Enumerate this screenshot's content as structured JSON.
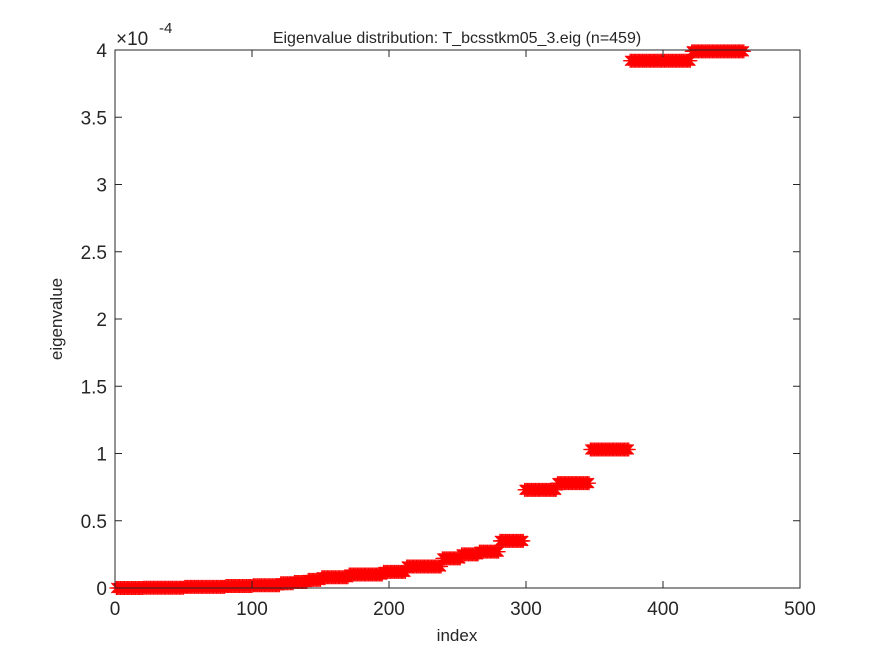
{
  "chart_data": {
    "type": "scatter",
    "title": "Eigenvalue distribution: T_bcsstkm05_3.eig (n=459)",
    "xlabel": "index",
    "ylabel": "eigenvalue",
    "xlim": [
      0,
      500
    ],
    "ylim": [
      0,
      4
    ],
    "y_exponent_base": "×10",
    "y_exponent_power": "-4",
    "y_scale_factor": 0.0001,
    "xticks": [
      0,
      100,
      200,
      300,
      400,
      500
    ],
    "xtick_labels": [
      "0",
      "100",
      "200",
      "300",
      "400",
      "500"
    ],
    "yticks": [
      0,
      0.5,
      1,
      1.5,
      2,
      2.5,
      3,
      3.5,
      4
    ],
    "ytick_labels": [
      "0",
      "0.5",
      "1",
      "1.5",
      "2",
      "2.5",
      "3",
      "3.5",
      "4"
    ],
    "marker": "*",
    "marker_color": "#ff0000",
    "axes_color": "#262626",
    "n": 459,
    "segments": [
      {
        "x_start": 1,
        "x_end": 20,
        "value": 0.0
      },
      {
        "x_start": 21,
        "x_end": 50,
        "value": 0.002
      },
      {
        "x_start": 51,
        "x_end": 80,
        "value": 0.008
      },
      {
        "x_start": 81,
        "x_end": 100,
        "value": 0.015
      },
      {
        "x_start": 101,
        "x_end": 120,
        "value": 0.02
      },
      {
        "x_start": 121,
        "x_end": 130,
        "value": 0.035
      },
      {
        "x_start": 131,
        "x_end": 140,
        "value": 0.045
      },
      {
        "x_start": 141,
        "x_end": 150,
        "value": 0.06
      },
      {
        "x_start": 151,
        "x_end": 170,
        "value": 0.08
      },
      {
        "x_start": 171,
        "x_end": 195,
        "value": 0.1
      },
      {
        "x_start": 196,
        "x_end": 212,
        "value": 0.12
      },
      {
        "x_start": 213,
        "x_end": 238,
        "value": 0.16
      },
      {
        "x_start": 239,
        "x_end": 252,
        "value": 0.22
      },
      {
        "x_start": 253,
        "x_end": 265,
        "value": 0.25
      },
      {
        "x_start": 266,
        "x_end": 280,
        "value": 0.27
      },
      {
        "x_start": 281,
        "x_end": 298,
        "value": 0.35
      },
      {
        "x_start": 299,
        "x_end": 322,
        "value": 0.73
      },
      {
        "x_start": 323,
        "x_end": 346,
        "value": 0.78
      },
      {
        "x_start": 347,
        "x_end": 375,
        "value": 1.03
      },
      {
        "x_start": 376,
        "x_end": 420,
        "value": 3.92
      },
      {
        "x_start": 421,
        "x_end": 459,
        "value": 3.99
      }
    ]
  }
}
